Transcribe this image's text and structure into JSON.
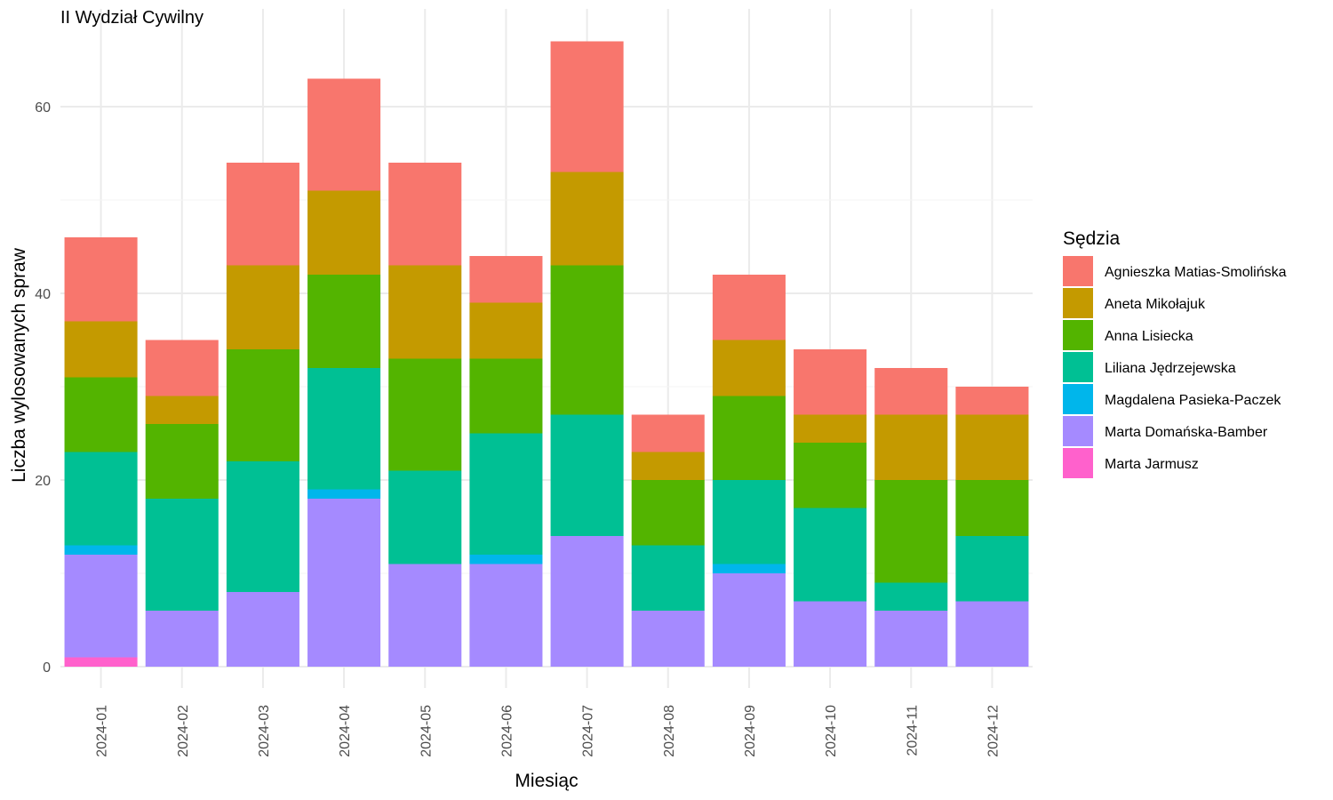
{
  "chart_data": {
    "type": "bar",
    "stacked": true,
    "title": "II Wydział Cywilny",
    "xlabel": "Miesiąc",
    "ylabel": "Liczba wylosowanych spraw",
    "ylim": [
      0,
      69
    ],
    "yticks": [
      0,
      20,
      40,
      60
    ],
    "grid": true,
    "legend_title": "Sędzia",
    "legend_position": "right",
    "categories": [
      "2024-01",
      "2024-02",
      "2024-03",
      "2024-04",
      "2024-05",
      "2024-06",
      "2024-07",
      "2024-08",
      "2024-09",
      "2024-10",
      "2024-11",
      "2024-12"
    ],
    "series": [
      {
        "name": "Marta Jarmusz",
        "color": "#FF61CC",
        "values": [
          1,
          0,
          0,
          0,
          0,
          0,
          0,
          0,
          0,
          0,
          0,
          0
        ]
      },
      {
        "name": "Marta Domańska-Bamber",
        "color": "#A58AFF",
        "values": [
          11,
          6,
          8,
          18,
          11,
          11,
          14,
          6,
          10,
          7,
          6,
          7
        ]
      },
      {
        "name": "Magdalena Pasieka-Paczek",
        "color": "#00B6EB",
        "values": [
          1,
          0,
          0,
          1,
          0,
          1,
          0,
          0,
          1,
          0,
          0,
          0
        ]
      },
      {
        "name": "Liliana Jędrzejewska",
        "color": "#00C094",
        "values": [
          10,
          12,
          14,
          13,
          10,
          13,
          13,
          7,
          9,
          10,
          3,
          7
        ]
      },
      {
        "name": "Anna Lisiecka",
        "color": "#53B400",
        "values": [
          8,
          8,
          12,
          10,
          12,
          8,
          16,
          7,
          9,
          7,
          11,
          6
        ]
      },
      {
        "name": "Aneta Mikołajuk",
        "color": "#C49A00",
        "values": [
          6,
          3,
          9,
          9,
          10,
          6,
          10,
          3,
          6,
          3,
          7,
          7
        ]
      },
      {
        "name": "Agnieszka Matias-Smolińska",
        "color": "#F8766D",
        "values": [
          9,
          6,
          11,
          12,
          11,
          5,
          14,
          4,
          7,
          7,
          5,
          3
        ]
      }
    ],
    "legend_order": [
      "Agnieszka Matias-Smolińska",
      "Aneta Mikołajuk",
      "Anna Lisiecka",
      "Liliana Jędrzejewska",
      "Magdalena Pasieka-Paczek",
      "Marta Domańska-Bamber",
      "Marta Jarmusz"
    ]
  }
}
